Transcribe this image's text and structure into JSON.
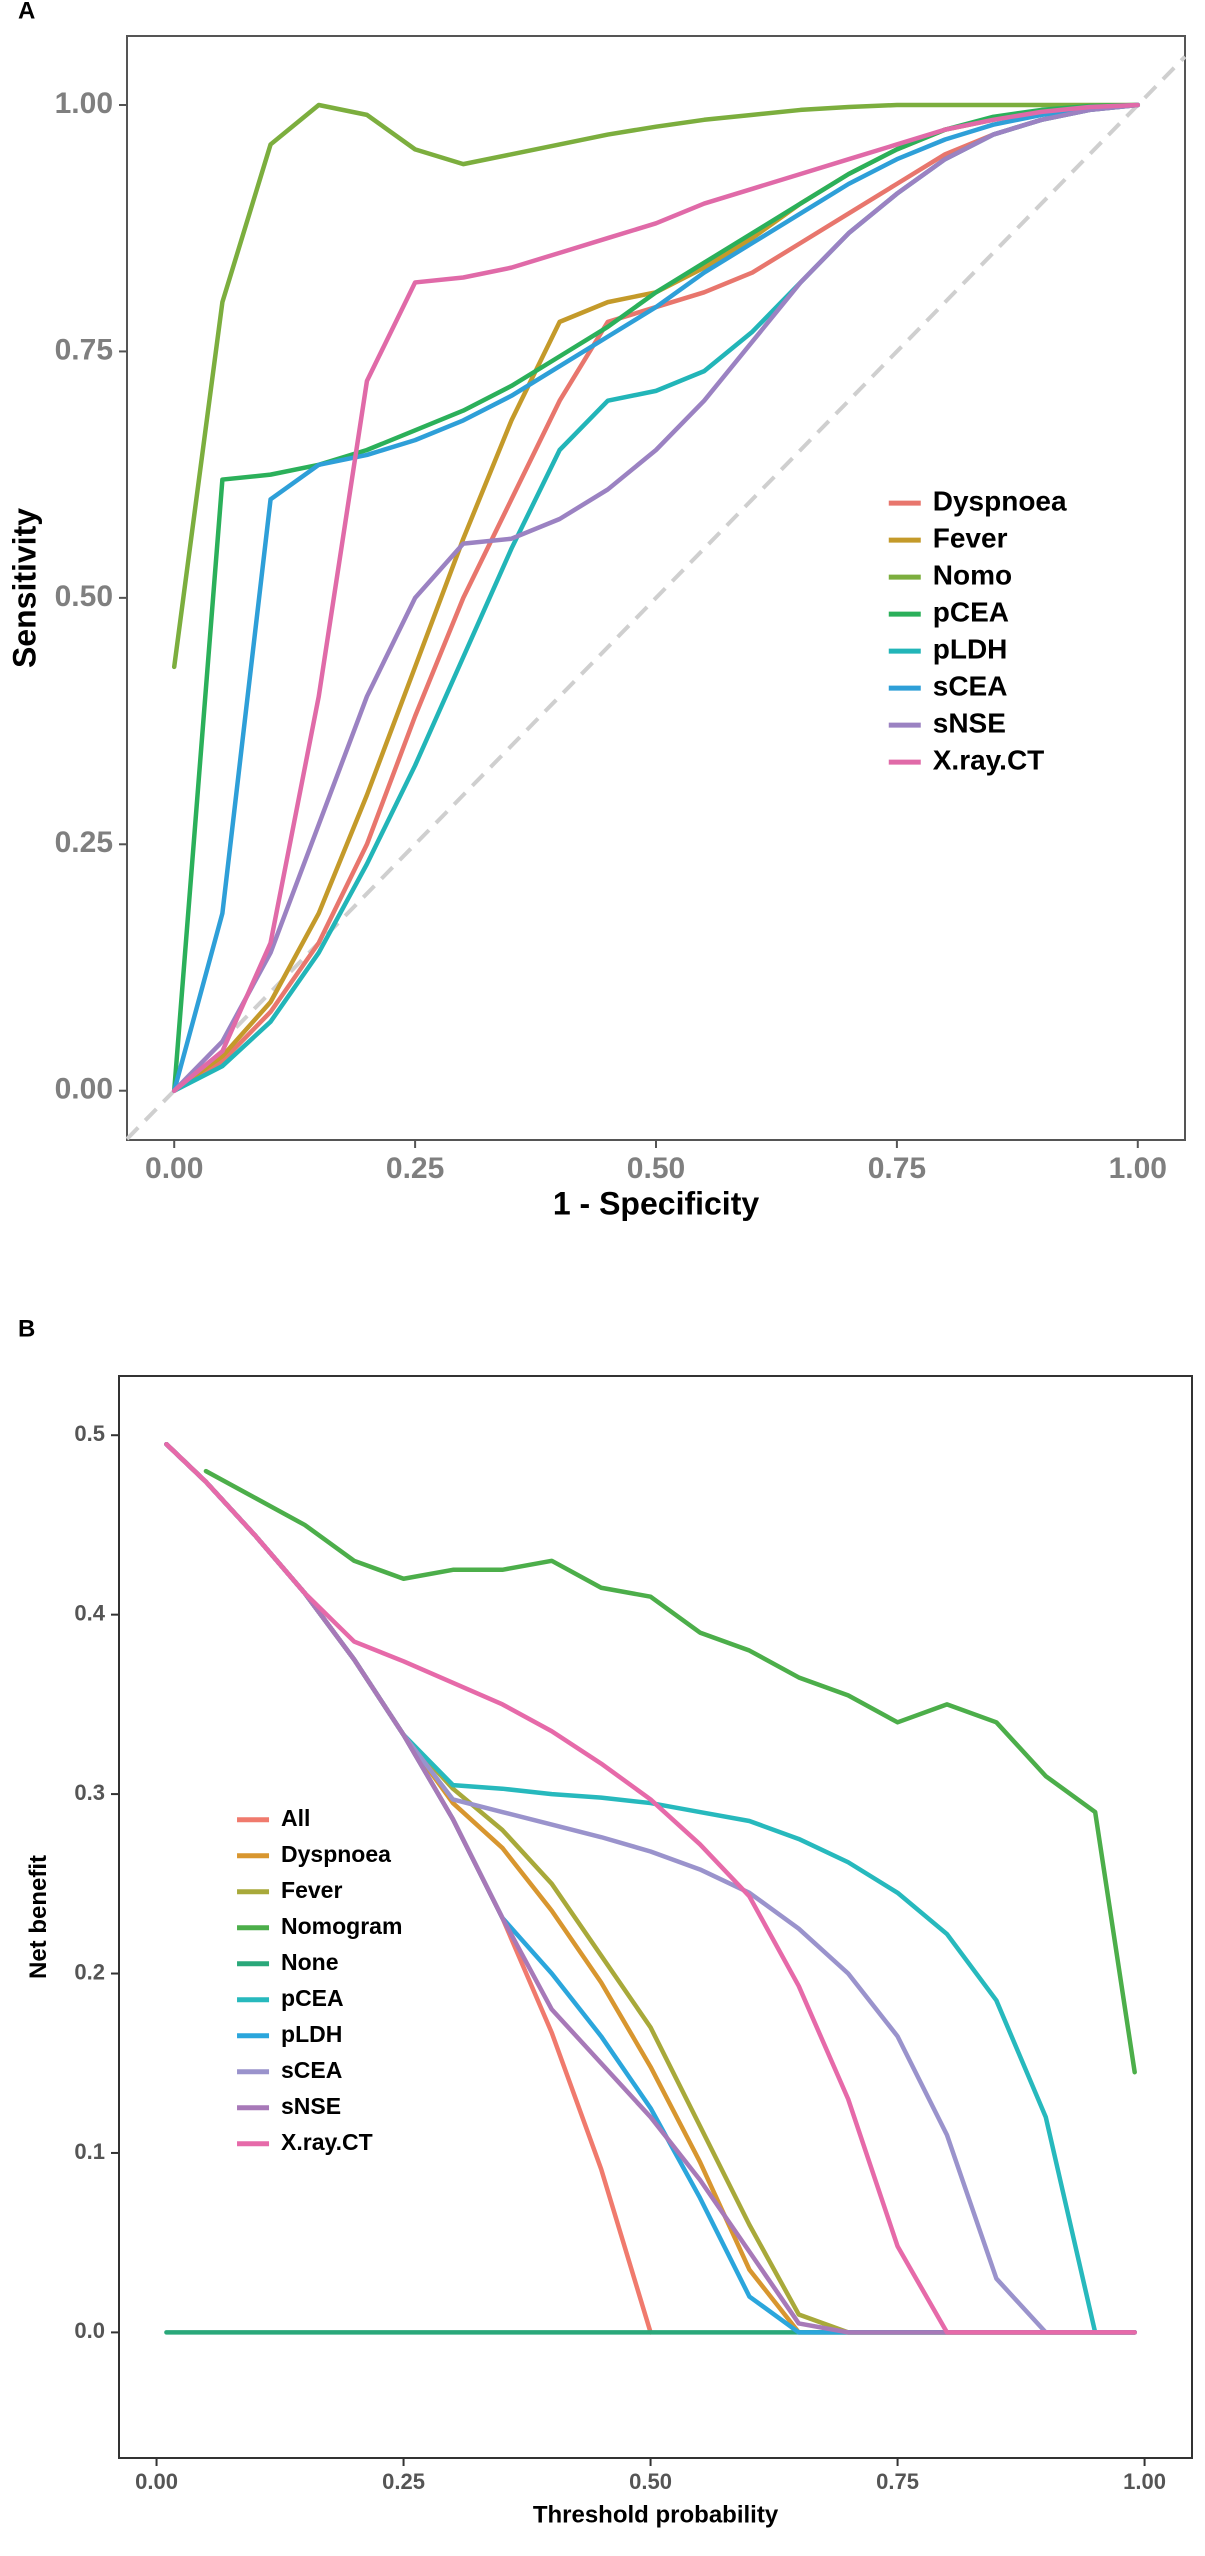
{
  "chart_data": [
    {
      "type": "line",
      "panel_label": "A",
      "x_label": "1 - Specificity",
      "y_label": "Sensitivity",
      "x": [
        0,
        0.05,
        0.1,
        0.15,
        0.2,
        0.25,
        0.3,
        0.35,
        0.4,
        0.45,
        0.5,
        0.55,
        0.6,
        0.65,
        0.7,
        0.75,
        0.8,
        0.85,
        0.9,
        0.95,
        1
      ],
      "xlim": [
        -0.049,
        1.049
      ],
      "ylim": [
        -0.05,
        1.07
      ],
      "xticks": [
        {
          "value": 0,
          "label": "0.00"
        },
        {
          "value": 0.25,
          "label": "0.25"
        },
        {
          "value": 0.5,
          "label": "0.50"
        },
        {
          "value": 0.75,
          "label": "0.75"
        },
        {
          "value": 1,
          "label": "1.00"
        }
      ],
      "yticks": [
        {
          "value": 0,
          "label": "0.00"
        },
        {
          "value": 0.25,
          "label": "0.25"
        },
        {
          "value": 0.5,
          "label": "0.50"
        },
        {
          "value": 0.75,
          "label": "0.75"
        },
        {
          "value": 1,
          "label": "1.00"
        }
      ],
      "reference_line": "diagonal",
      "grid": false,
      "legend": "right",
      "series": [
        {
          "name": "Dyspnoea",
          "color": "#e8766d",
          "values": [
            0,
            0.03,
            0.08,
            0.15,
            0.25,
            0.38,
            0.5,
            0.6,
            0.7,
            0.78,
            0.795,
            0.81,
            0.83,
            0.86,
            0.89,
            0.92,
            0.95,
            0.97,
            0.985,
            0.995,
            1
          ]
        },
        {
          "name": "Fever",
          "color": "#c49a2a",
          "values": [
            0,
            0.035,
            0.09,
            0.18,
            0.3,
            0.43,
            0.56,
            0.68,
            0.78,
            0.8,
            0.81,
            0.835,
            0.865,
            0.9,
            0.93,
            0.955,
            0.975,
            0.985,
            0.993,
            0.998,
            1
          ]
        },
        {
          "name": "Nomo",
          "color": "#7cae3e",
          "values": [
            0.43,
            0.8,
            0.96,
            1.0,
            0.99,
            0.955,
            0.94,
            0.95,
            0.96,
            0.97,
            0.978,
            0.985,
            0.99,
            0.995,
            0.998,
            1,
            1,
            1,
            1,
            1,
            1
          ]
        },
        {
          "name": "pCEA",
          "color": "#2bb05a",
          "values": [
            0,
            0.62,
            0.625,
            0.635,
            0.65,
            0.67,
            0.69,
            0.715,
            0.745,
            0.775,
            0.81,
            0.84,
            0.87,
            0.9,
            0.93,
            0.955,
            0.975,
            0.988,
            0.995,
            0.999,
            1
          ]
        },
        {
          "name": "pLDH",
          "color": "#22b5b8",
          "values": [
            0,
            0.025,
            0.07,
            0.14,
            0.23,
            0.33,
            0.44,
            0.55,
            0.65,
            0.7,
            0.71,
            0.73,
            0.77,
            0.82,
            0.87,
            0.91,
            0.945,
            0.97,
            0.985,
            0.995,
            1
          ]
        },
        {
          "name": "sCEA",
          "color": "#2e9fd8",
          "values": [
            0,
            0.18,
            0.6,
            0.635,
            0.645,
            0.66,
            0.68,
            0.705,
            0.735,
            0.765,
            0.795,
            0.83,
            0.86,
            0.89,
            0.92,
            0.945,
            0.965,
            0.98,
            0.99,
            0.997,
            1
          ]
        },
        {
          "name": "sNSE",
          "color": "#9b82c2",
          "values": [
            0,
            0.05,
            0.14,
            0.27,
            0.4,
            0.5,
            0.555,
            0.56,
            0.58,
            0.61,
            0.65,
            0.7,
            0.76,
            0.82,
            0.87,
            0.91,
            0.945,
            0.97,
            0.985,
            0.995,
            1
          ]
        },
        {
          "name": "X.ray.CT",
          "color": "#e06aa8",
          "values": [
            0,
            0.04,
            0.15,
            0.4,
            0.72,
            0.82,
            0.825,
            0.835,
            0.85,
            0.865,
            0.88,
            0.9,
            0.915,
            0.93,
            0.945,
            0.96,
            0.975,
            0.985,
            0.993,
            0.998,
            1
          ]
        }
      ]
    },
    {
      "type": "line",
      "panel_label": "B",
      "x_label": "Threshold probability",
      "y_label": "Net benefit",
      "x": [
        0.01,
        0.05,
        0.1,
        0.15,
        0.2,
        0.25,
        0.3,
        0.35,
        0.4,
        0.45,
        0.5,
        0.55,
        0.6,
        0.65,
        0.7,
        0.75,
        0.8,
        0.85,
        0.9,
        0.95,
        0.99
      ],
      "xlim": [
        -0.038,
        1.048
      ],
      "ylim": [
        -0.07,
        0.533
      ],
      "xticks": [
        {
          "value": 0,
          "label": "0.00"
        },
        {
          "value": 0.25,
          "label": "0.25"
        },
        {
          "value": 0.5,
          "label": "0.50"
        },
        {
          "value": 0.75,
          "label": "0.75"
        },
        {
          "value": 1,
          "label": "1.00"
        }
      ],
      "yticks": [
        {
          "value": 0,
          "label": "0.0"
        },
        0.1,
        0.2,
        0.3,
        0.4,
        0.5
      ],
      "grid": false,
      "legend": "left",
      "series": [
        {
          "name": "All",
          "color": "#f07a6d",
          "values": [
            0.495,
            0.474,
            0.444,
            0.412,
            0.375,
            0.333,
            0.286,
            0.231,
            0.167,
            0.091,
            0,
            null,
            null,
            null,
            null,
            null,
            null,
            null,
            null,
            null,
            null
          ]
        },
        {
          "name": "Dyspnoea",
          "color": "#d8962f",
          "values": [
            0.495,
            0.474,
            0.444,
            0.412,
            0.375,
            0.333,
            0.295,
            0.27,
            0.235,
            0.195,
            0.148,
            0.095,
            0.035,
            0,
            0,
            0,
            0,
            0,
            0,
            0,
            0
          ]
        },
        {
          "name": "Fever",
          "color": "#a8a93a",
          "values": [
            0.495,
            0.474,
            0.444,
            0.412,
            0.375,
            0.333,
            0.303,
            0.28,
            0.25,
            0.21,
            0.17,
            0.115,
            0.06,
            0.01,
            0,
            0,
            0,
            0,
            0,
            0,
            0
          ]
        },
        {
          "name": "Nomogram",
          "color": "#4cae4a",
          "values": [
            null,
            0.48,
            0.465,
            0.45,
            0.43,
            0.42,
            0.425,
            0.425,
            0.43,
            0.415,
            0.41,
            0.39,
            0.38,
            0.365,
            0.355,
            0.34,
            0.35,
            0.34,
            0.31,
            0.29,
            0.145
          ]
        },
        {
          "name": "None",
          "color": "#2aa87a",
          "values": [
            0,
            0,
            0,
            0,
            0,
            0,
            0,
            0,
            0,
            0,
            0,
            0,
            0,
            0,
            0,
            0,
            0,
            0,
            0,
            0,
            0
          ]
        },
        {
          "name": "pCEA",
          "color": "#27b9bd",
          "values": [
            0.495,
            0.474,
            0.444,
            0.412,
            0.375,
            0.333,
            0.305,
            0.303,
            0.3,
            0.298,
            0.295,
            0.29,
            0.285,
            0.275,
            0.262,
            0.245,
            0.222,
            0.185,
            0.12,
            0,
            0
          ]
        },
        {
          "name": "pLDH",
          "color": "#2ba6dc",
          "values": [
            0.495,
            0.474,
            0.444,
            0.412,
            0.375,
            0.333,
            0.286,
            0.231,
            0.2,
            0.165,
            0.125,
            0.075,
            0.02,
            0,
            0,
            0,
            0,
            0,
            0,
            0,
            0
          ]
        },
        {
          "name": "sCEA",
          "color": "#9a93cc",
          "values": [
            0.495,
            0.474,
            0.444,
            0.412,
            0.375,
            0.333,
            0.297,
            0.29,
            0.283,
            0.276,
            0.268,
            0.258,
            0.245,
            0.225,
            0.2,
            0.165,
            0.11,
            0.03,
            0,
            0,
            0
          ]
        },
        {
          "name": "sNSE",
          "color": "#a779b8",
          "values": [
            0.495,
            0.474,
            0.444,
            0.412,
            0.375,
            0.333,
            0.286,
            0.231,
            0.18,
            0.15,
            0.12,
            0.085,
            0.045,
            0.005,
            0,
            0,
            0,
            0,
            0,
            0,
            0
          ]
        },
        {
          "name": "X.ray.CT",
          "color": "#e66aa9",
          "values": [
            0.495,
            0.474,
            0.444,
            0.412,
            0.385,
            0.374,
            0.362,
            0.35,
            0.335,
            0.317,
            0.297,
            0.272,
            0.243,
            0.193,
            0.13,
            0.048,
            0,
            0,
            0,
            0,
            0
          ]
        }
      ]
    }
  ]
}
